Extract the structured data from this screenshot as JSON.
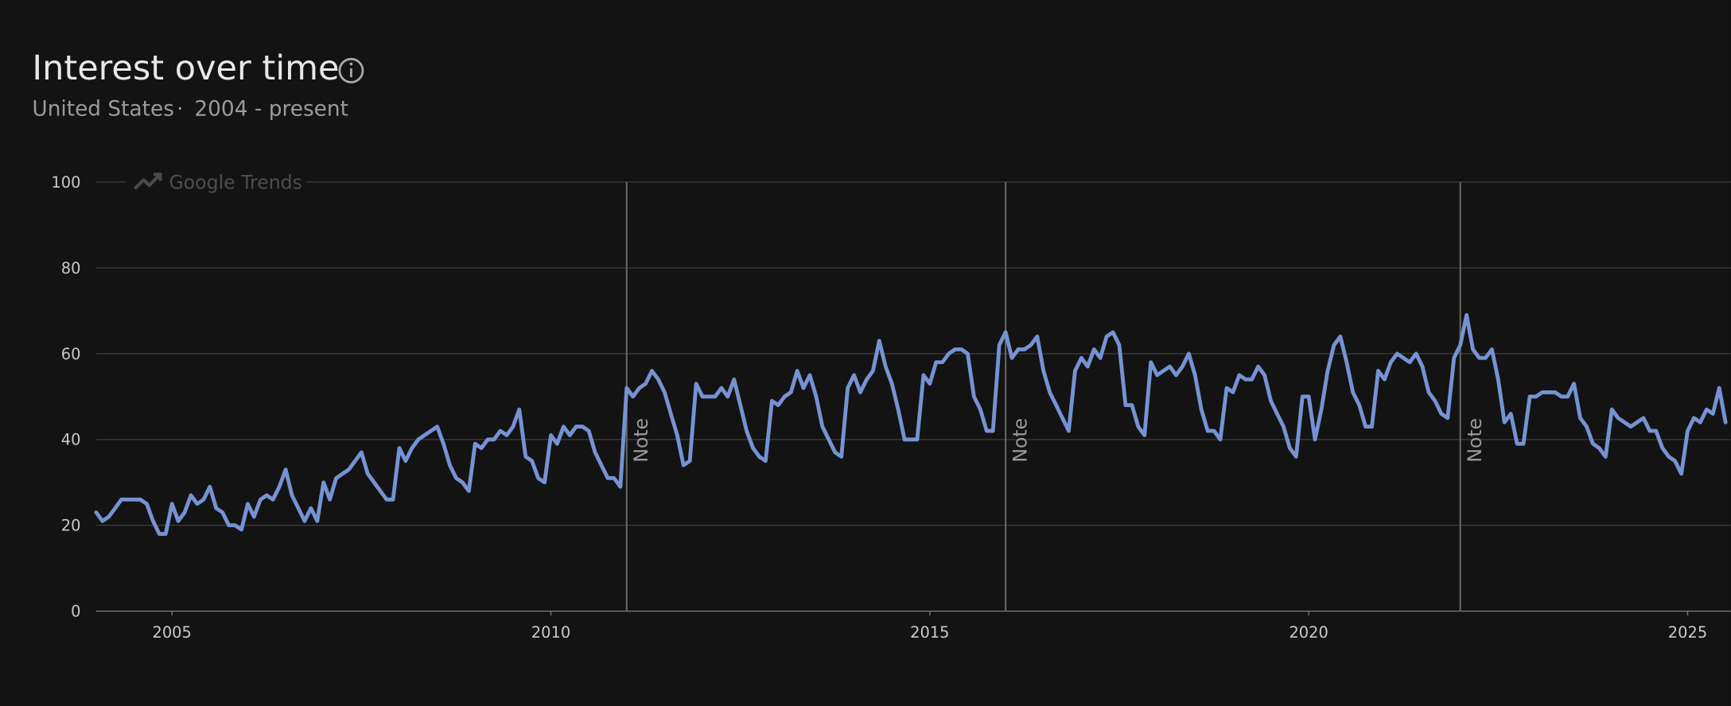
{
  "chart_data": {
    "type": "line",
    "title": "Interest over time",
    "subtitle": [
      "United States",
      "2004 - present"
    ],
    "watermark": "Google Trends",
    "xlim": [
      2004,
      2025.57
    ],
    "xticks": [
      2005,
      2010,
      2015,
      2020,
      2025
    ],
    "ylim": [
      0,
      100
    ],
    "yticks": [
      0,
      20,
      40,
      60,
      80,
      100
    ],
    "grid": true,
    "annotations": [
      {
        "x": 2011,
        "label": "Note"
      },
      {
        "x": 2016,
        "label": "Note"
      },
      {
        "x": 2022,
        "label": "Note"
      }
    ],
    "x": [
      2004,
      2004.083,
      2004.167,
      2004.25,
      2004.333,
      2004.417,
      2004.5,
      2004.583,
      2004.667,
      2004.75,
      2004.833,
      2004.917,
      2005,
      2005.083,
      2005.167,
      2005.25,
      2005.333,
      2005.417,
      2005.5,
      2005.583,
      2005.667,
      2005.75,
      2005.833,
      2005.917,
      2006,
      2006.083,
      2006.167,
      2006.25,
      2006.333,
      2006.417,
      2006.5,
      2006.583,
      2006.667,
      2006.75,
      2006.833,
      2006.917,
      2007,
      2007.083,
      2007.167,
      2007.25,
      2007.333,
      2007.417,
      2007.5,
      2007.583,
      2007.667,
      2007.75,
      2007.833,
      2007.917,
      2008,
      2008.083,
      2008.167,
      2008.25,
      2008.333,
      2008.417,
      2008.5,
      2008.583,
      2008.667,
      2008.75,
      2008.833,
      2008.917,
      2009,
      2009.083,
      2009.167,
      2009.25,
      2009.333,
      2009.417,
      2009.5,
      2009.583,
      2009.667,
      2009.75,
      2009.833,
      2009.917,
      2010,
      2010.083,
      2010.167,
      2010.25,
      2010.333,
      2010.417,
      2010.5,
      2010.583,
      2010.667,
      2010.75,
      2010.833,
      2010.917,
      2011,
      2011.083,
      2011.167,
      2011.25,
      2011.333,
      2011.417,
      2011.5,
      2011.583,
      2011.667,
      2011.75,
      2011.833,
      2011.917,
      2012,
      2012.083,
      2012.167,
      2012.25,
      2012.333,
      2012.417,
      2012.5,
      2012.583,
      2012.667,
      2012.75,
      2012.833,
      2012.917,
      2013,
      2013.083,
      2013.167,
      2013.25,
      2013.333,
      2013.417,
      2013.5,
      2013.583,
      2013.667,
      2013.75,
      2013.833,
      2013.917,
      2014,
      2014.083,
      2014.167,
      2014.25,
      2014.333,
      2014.417,
      2014.5,
      2014.583,
      2014.667,
      2014.75,
      2014.833,
      2014.917,
      2015,
      2015.083,
      2015.167,
      2015.25,
      2015.333,
      2015.417,
      2015.5,
      2015.583,
      2015.667,
      2015.75,
      2015.833,
      2015.917,
      2016,
      2016.083,
      2016.167,
      2016.25,
      2016.333,
      2016.417,
      2016.5,
      2016.583,
      2016.667,
      2016.75,
      2016.833,
      2016.917,
      2017,
      2017.083,
      2017.167,
      2017.25,
      2017.333,
      2017.417,
      2017.5,
      2017.583,
      2017.667,
      2017.75,
      2017.833,
      2017.917,
      2018,
      2018.083,
      2018.167,
      2018.25,
      2018.333,
      2018.417,
      2018.5,
      2018.583,
      2018.667,
      2018.75,
      2018.833,
      2018.917,
      2019,
      2019.083,
      2019.167,
      2019.25,
      2019.333,
      2019.417,
      2019.5,
      2019.583,
      2019.667,
      2019.75,
      2019.833,
      2019.917,
      2020,
      2020.083,
      2020.167,
      2020.25,
      2020.333,
      2020.417,
      2020.5,
      2020.583,
      2020.667,
      2020.75,
      2020.833,
      2020.917,
      2021,
      2021.083,
      2021.167,
      2021.25,
      2021.333,
      2021.417,
      2021.5,
      2021.583,
      2021.667,
      2021.75,
      2021.833,
      2021.917,
      2022,
      2022.083,
      2022.167,
      2022.25,
      2022.333,
      2022.417,
      2022.5,
      2022.583,
      2022.667,
      2022.75,
      2022.833,
      2022.917,
      2023,
      2023.083,
      2023.167,
      2023.25,
      2023.333,
      2023.417,
      2023.5,
      2023.583,
      2023.667,
      2023.75,
      2023.833,
      2023.917,
      2024,
      2024.083,
      2024.167,
      2024.25,
      2024.333,
      2024.417,
      2024.5,
      2024.583,
      2024.667,
      2024.75,
      2024.833,
      2024.917,
      2025,
      2025.083,
      2025.167,
      2025.25,
      2025.333,
      2025.417,
      2025.5
    ],
    "series": [
      {
        "color": "#7592d3",
        "values": [
          23,
          21,
          22,
          24,
          26,
          26,
          26,
          26,
          25,
          21,
          18,
          18,
          25,
          21,
          23,
          27,
          25,
          26,
          29,
          24,
          23,
          20,
          20,
          19,
          25,
          22,
          26,
          27,
          26,
          29,
          33,
          27,
          24,
          21,
          24,
          21,
          30,
          26,
          31,
          32,
          33,
          35,
          37,
          32,
          30,
          28,
          26,
          26,
          38,
          35,
          38,
          40,
          41,
          42,
          43,
          39,
          34,
          31,
          30,
          28,
          39,
          38,
          40,
          40,
          42,
          41,
          43,
          47,
          36,
          35,
          31,
          30,
          41,
          39,
          43,
          41,
          43,
          43,
          42,
          37,
          34,
          31,
          31,
          29,
          52,
          50,
          52,
          53,
          56,
          54,
          51,
          46,
          41,
          34,
          35,
          53,
          50,
          50,
          50,
          52,
          50,
          54,
          48,
          42,
          38,
          36,
          35,
          49,
          48,
          50,
          51,
          56,
          52,
          55,
          50,
          43,
          40,
          37,
          36,
          52,
          55,
          51,
          54,
          56,
          63,
          57,
          53,
          47,
          40,
          40,
          40,
          55,
          53,
          58,
          58,
          60,
          61,
          61,
          60,
          50,
          47,
          42,
          42,
          62,
          65,
          59,
          61,
          61,
          62,
          64,
          56,
          51,
          48,
          45,
          42,
          56,
          59,
          57,
          61,
          59,
          64,
          65,
          62,
          48,
          48,
          43,
          41,
          58,
          55,
          56,
          57,
          55,
          57,
          60,
          55,
          47,
          42,
          42,
          40,
          52,
          51,
          55,
          54,
          54,
          57,
          55,
          49,
          46,
          43,
          38,
          36,
          50,
          50,
          40,
          47,
          56,
          62,
          64,
          58,
          51,
          48,
          43,
          43,
          56,
          54,
          58,
          60,
          59,
          58,
          60,
          57,
          51,
          49,
          46,
          45,
          59,
          62,
          69,
          61,
          59,
          59,
          61,
          54,
          44,
          46,
          39,
          39,
          50,
          50,
          51,
          51,
          51,
          50,
          50,
          53,
          45,
          43,
          39,
          38,
          36,
          47,
          45,
          44,
          43,
          44,
          45,
          42,
          42,
          38,
          36,
          35,
          32,
          42,
          45,
          44,
          47,
          46,
          52,
          44
        ]
      }
    ]
  }
}
